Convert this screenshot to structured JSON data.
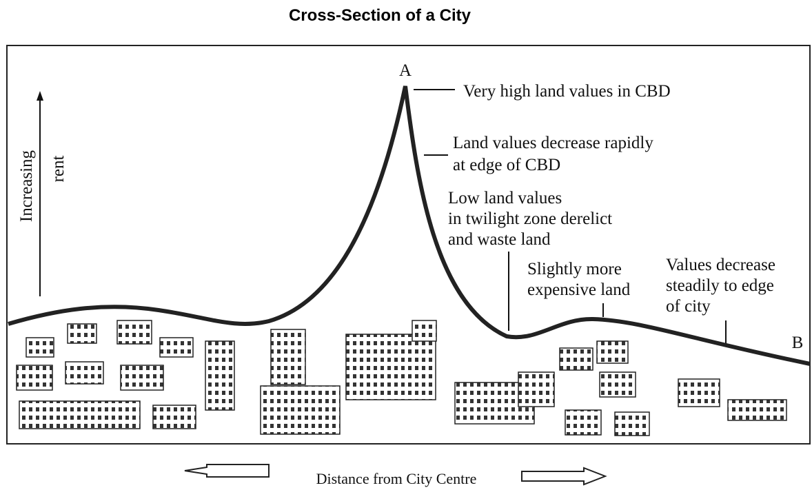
{
  "title": "Cross-Section of a City",
  "y_axis": {
    "lines": [
      "Increasing",
      "rent"
    ]
  },
  "x_axis": {
    "label": "Distance from City Centre"
  },
  "points": {
    "a": "A",
    "b": "B"
  },
  "annotations": [
    {
      "lines": [
        "Very high land values in CBD"
      ]
    },
    {
      "lines": [
        "Land values decrease rapidly",
        "at edge of CBD"
      ]
    },
    {
      "lines": [
        "Low land values",
        "in twilight zone derelict",
        "and waste land"
      ]
    },
    {
      "lines": [
        "Slightly more",
        "expensive land"
      ]
    },
    {
      "lines": [
        "Values decrease",
        "steadily to edge",
        "of city"
      ]
    }
  ]
}
